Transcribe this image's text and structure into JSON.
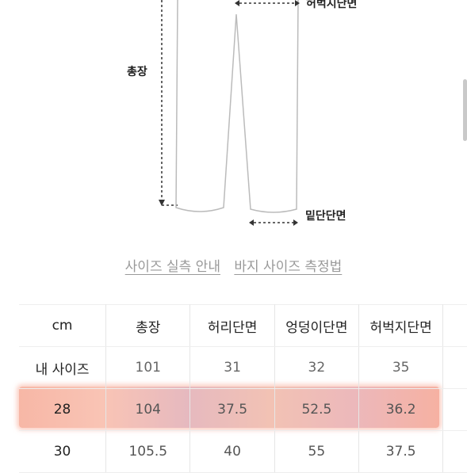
{
  "diagram": {
    "label_waist_partial": "허벅지단면",
    "label_length": "총장",
    "label_hem": "밑단단면"
  },
  "links": {
    "size_guide": "사이즈 실측 안내",
    "pants_measure": "바지 사이즈 측정법"
  },
  "table": {
    "headers": [
      "cm",
      "총장",
      "허리단면",
      "엉덩이단면",
      "허벅지단면"
    ],
    "rows": [
      {
        "size": "내 사이즈",
        "values": [
          "101",
          "31",
          "32",
          "35"
        ]
      },
      {
        "size": "28",
        "values": [
          "104",
          "37.5",
          "52.5",
          "36.2"
        ]
      },
      {
        "size": "30",
        "values": [
          "105.5",
          "40",
          "55",
          "37.5"
        ]
      }
    ]
  },
  "colors": {
    "highlight": "#f7b7a6",
    "diagram_stroke": "#bbbbbb"
  }
}
